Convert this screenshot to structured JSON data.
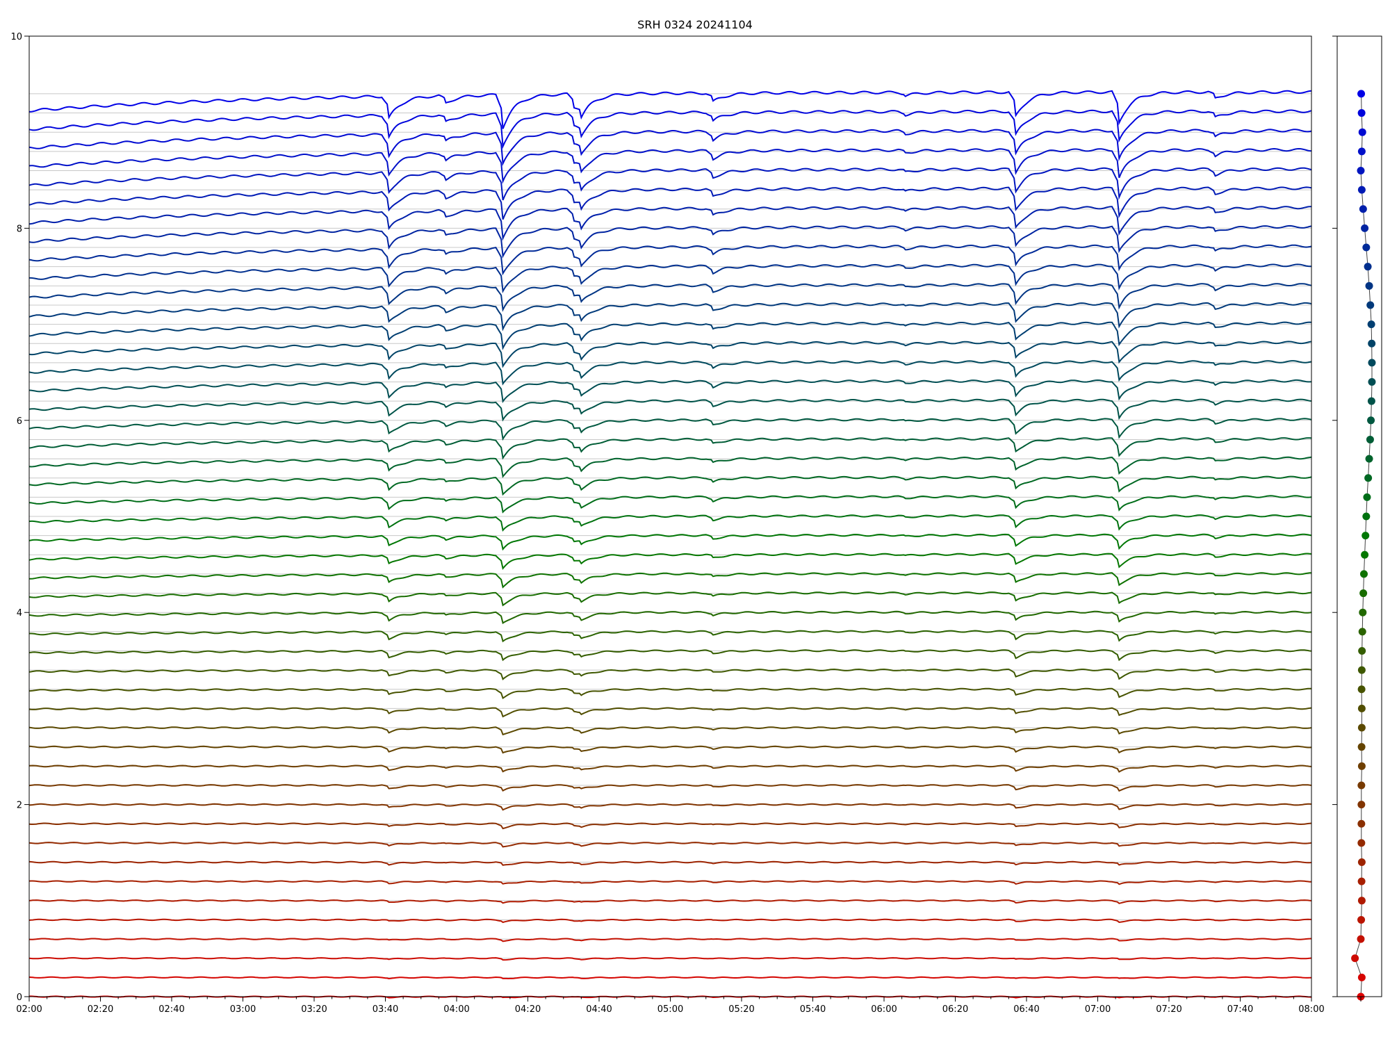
{
  "chart_data": {
    "type": "line",
    "title": "SRH 0324 20241104",
    "xlabel": "",
    "ylabel": "",
    "xlim": [
      "02:00",
      "08:00"
    ],
    "ylim": [
      0,
      10
    ],
    "x_ticks": [
      "02:00",
      "02:20",
      "02:40",
      "03:00",
      "03:20",
      "03:40",
      "04:00",
      "04:20",
      "04:40",
      "05:00",
      "05:20",
      "05:40",
      "06:00",
      "06:20",
      "06:40",
      "07:00",
      "07:20",
      "07:40",
      "08:00"
    ],
    "y_ticks": [
      "0",
      "2",
      "4",
      "6",
      "8",
      "10"
    ],
    "grid": "horizontal reference line at each series baseline",
    "n_series": 48,
    "series_offset_step": 0.2,
    "color_start": "#e00000",
    "color_mid": "#007a00",
    "color_end": "#0000e6",
    "events": [
      {
        "time": "03:41",
        "depth": 0.2
      },
      {
        "time": "03:57",
        "depth": 0.07
      },
      {
        "time": "04:13",
        "depth": 0.3
      },
      {
        "time": "04:33",
        "depth": 0.12
      },
      {
        "time": "04:35",
        "depth": 0.14
      },
      {
        "time": "05:12",
        "depth": 0.08
      },
      {
        "time": "06:06",
        "depth": 0.03
      },
      {
        "time": "06:37",
        "depth": 0.22
      },
      {
        "time": "07:06",
        "depth": 0.28
      },
      {
        "time": "07:33",
        "depth": 0.06
      }
    ],
    "side_panel": {
      "type": "scatter",
      "points_y": [
        0,
        0.2,
        0.4,
        0.6,
        0.8,
        1.0,
        1.2,
        1.4,
        1.6,
        1.8,
        2.0,
        2.2,
        2.4,
        2.6,
        2.8,
        3.0,
        3.2,
        3.4,
        3.6,
        3.8,
        4.0,
        4.2,
        4.4,
        4.6,
        4.8,
        5.0,
        5.2,
        5.4,
        5.6,
        5.8,
        6.0,
        6.2,
        6.4,
        6.6,
        6.8,
        7.0,
        7.2,
        7.4,
        7.6,
        7.8,
        8.0,
        8.2,
        8.4,
        8.6,
        8.8,
        9.0,
        9.2,
        9.4
      ],
      "points_x": [
        0.5,
        0.55,
        0.2,
        0.5,
        0.52,
        0.55,
        0.54,
        0.55,
        0.53,
        0.53,
        0.53,
        0.53,
        0.55,
        0.54,
        0.55,
        0.55,
        0.54,
        0.55,
        0.56,
        0.58,
        0.6,
        0.63,
        0.66,
        0.7,
        0.74,
        0.78,
        0.82,
        0.88,
        0.93,
        0.98,
        1.02,
        1.05,
        1.07,
        1.07,
        1.06,
        1.04,
        0.99,
        0.93,
        0.86,
        0.78,
        0.7,
        0.62,
        0.55,
        0.5,
        0.55,
        0.58,
        0.54,
        0.52
      ]
    }
  }
}
